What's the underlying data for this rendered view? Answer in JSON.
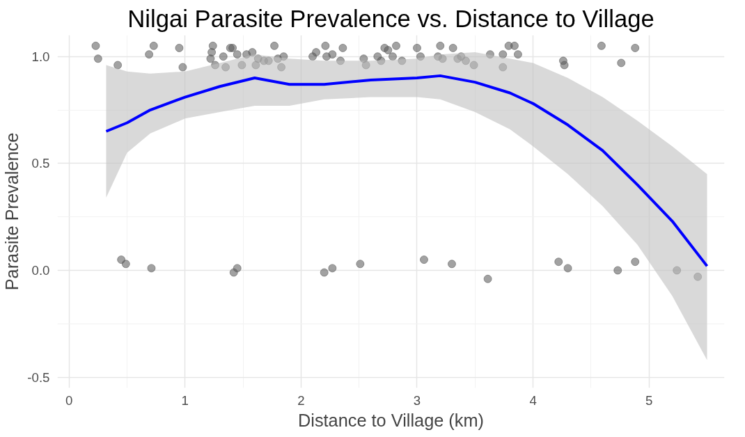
{
  "chart_data": {
    "type": "scatter",
    "title": "Nilgai Parasite Prevalence vs. Distance to Village",
    "xlabel": "Distance to Village (km)",
    "ylabel": "Parasite Prevalence",
    "xlim": [
      -0.1,
      5.65
    ],
    "ylim": [
      -0.55,
      1.1
    ],
    "xticks": [
      0,
      1,
      2,
      3,
      4,
      5
    ],
    "yticks": [
      {
        "value": -0.5,
        "label": "-0.5"
      },
      {
        "value": 0,
        "label": "0.0"
      },
      {
        "value": 0.5,
        "label": "0.5"
      },
      {
        "value": 1,
        "label": "1.0"
      }
    ],
    "grid": true,
    "marker": "circle",
    "series": [
      {
        "color": "#555555",
        "x": [
          0.23,
          0.25,
          0.42,
          0.69,
          0.73,
          0.95,
          0.98,
          1.22,
          1.23,
          1.24,
          1.26,
          1.33,
          1.35,
          1.39,
          1.41,
          1.45,
          1.49,
          1.53,
          1.58,
          1.61,
          1.63,
          1.68,
          1.72,
          1.77,
          1.8,
          1.83,
          1.85,
          2.1,
          2.13,
          2.21,
          2.22,
          2.27,
          2.34,
          2.36,
          2.54,
          2.56,
          2.66,
          2.69,
          2.72,
          2.75,
          2.79,
          2.82,
          2.87,
          3.0,
          3.03,
          3.18,
          3.2,
          3.22,
          3.31,
          3.35,
          3.38,
          3.42,
          3.49,
          3.63,
          3.74,
          3.74,
          3.79,
          3.84,
          3.87,
          4.26,
          4.27,
          4.59,
          4.76,
          4.88,
          0.45,
          0.49,
          0.71,
          1.42,
          1.45,
          2.2,
          2.27,
          2.51,
          3.06,
          3.3,
          3.61,
          4.22,
          4.3,
          4.73,
          4.88,
          5.24,
          5.42
        ],
        "values": [
          1.05,
          0.99,
          0.96,
          1.01,
          1.05,
          1.04,
          0.95,
          0.99,
          1.02,
          1.05,
          0.96,
          1.0,
          0.95,
          1.04,
          1.04,
          1.01,
          0.96,
          1.01,
          1.02,
          0.96,
          0.99,
          0.98,
          0.98,
          1.05,
          0.99,
          0.95,
          1.0,
          1.0,
          1.02,
          1.05,
          1.0,
          1.01,
          0.98,
          1.04,
          0.99,
          0.96,
          1.0,
          0.98,
          1.04,
          1.03,
          1.0,
          1.05,
          0.98,
          1.04,
          1.0,
          1.0,
          1.05,
          0.99,
          1.04,
          0.99,
          1.0,
          0.98,
          0.96,
          1.01,
          0.95,
          1.01,
          1.05,
          1.05,
          1.01,
          0.98,
          0.96,
          1.05,
          0.97,
          1.04,
          0.05,
          0.03,
          0.01,
          -0.01,
          0.01,
          -0.01,
          0.01,
          0.03,
          0.05,
          0.03,
          -0.04,
          0.04,
          0.01,
          0.0,
          0.04,
          0.0,
          -0.03
        ]
      },
      {
        "type": "line",
        "marker": "none",
        "color": "#0000ff",
        "x": [
          0.32,
          0.5,
          0.7,
          1.0,
          1.3,
          1.6,
          1.9,
          2.2,
          2.6,
          3.0,
          3.2,
          3.5,
          3.8,
          4.0,
          4.3,
          4.6,
          4.9,
          5.2,
          5.5
        ],
        "values": [
          0.65,
          0.69,
          0.75,
          0.81,
          0.86,
          0.9,
          0.87,
          0.87,
          0.89,
          0.9,
          0.91,
          0.88,
          0.83,
          0.78,
          0.68,
          0.56,
          0.4,
          0.23,
          0.02
        ],
        "lower": [
          0.34,
          0.55,
          0.64,
          0.71,
          0.74,
          0.77,
          0.77,
          0.8,
          0.81,
          0.81,
          0.8,
          0.74,
          0.66,
          0.58,
          0.45,
          0.3,
          0.12,
          -0.12,
          -0.42
        ],
        "upper": [
          0.96,
          0.93,
          0.92,
          0.93,
          0.97,
          1.01,
          0.99,
          0.98,
          0.98,
          0.99,
          1.01,
          1.02,
          0.99,
          0.97,
          0.9,
          0.81,
          0.7,
          0.58,
          0.45
        ]
      }
    ]
  }
}
